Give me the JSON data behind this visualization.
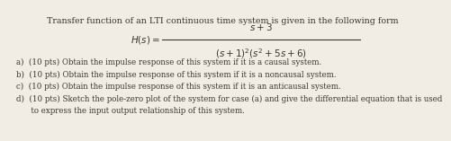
{
  "title": "Transfer function of an LTI continuous time system is given in the following form",
  "numerator": "$s+3$",
  "denominator": "$(s+1)^2(s^2+5s+6)$",
  "lhs": "$H(s) =$",
  "items": [
    "a)  (10 pts) Obtain the impulse response of this system if it is a causal system.",
    "b)  (10 pts) Obtain the impulse response of this system if it is a noncausal system.",
    "c)  (10 pts) Obtain the impulse response of this system if it is an anticausal system.",
    "d)  (10 pts) Sketch the pole-zero plot of the system for case (a) and give the differential equation that is used",
    "      to express the input output relationship of this system."
  ],
  "background_color": "#f2ede4",
  "text_color": "#3a3530",
  "font_size_title": 6.8,
  "font_size_formula": 7.5,
  "font_size_body": 6.2
}
